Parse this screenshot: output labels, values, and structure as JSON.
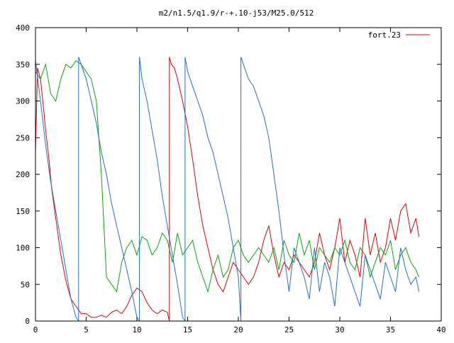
{
  "chart_data": {
    "type": "line",
    "title": "m2/n1.5/q1.9/r-+.10-j53/M25.0/512",
    "xlabel": "",
    "ylabel": "",
    "xlim": [
      0,
      40
    ],
    "ylim": [
      0,
      400
    ],
    "xticks": [
      0,
      5,
      10,
      15,
      20,
      25,
      30,
      35,
      40
    ],
    "yticks": [
      0,
      50,
      100,
      150,
      200,
      250,
      300,
      350,
      400
    ],
    "grid": false,
    "legend": {
      "position": "top-right",
      "entries": [
        "fort.23"
      ]
    },
    "wrap_period": 360,
    "series": [
      {
        "name": "fort.23",
        "color": "#dd0000",
        "x": [
          0.0,
          0.2,
          0.5,
          0.8,
          1.0,
          1.3,
          1.6,
          2.0,
          2.5,
          3.0,
          3.5,
          4.0,
          4.5,
          5.0,
          5.5,
          6.0,
          6.5,
          7.0,
          7.5,
          8.0,
          8.5,
          9.0,
          9.5,
          10.0,
          10.5,
          11.0,
          11.5,
          12.0,
          12.5,
          13.0,
          13.4,
          13.7,
          14.0,
          14.5,
          15.0,
          15.5,
          16.0,
          16.5,
          17.0,
          17.5,
          18.0,
          18.5,
          19.0,
          19.5,
          20.0,
          20.5,
          21.0,
          21.5,
          22.0,
          22.5,
          23.0,
          23.5,
          24.0,
          24.5,
          25.0,
          25.5,
          26.0,
          26.5,
          27.0,
          27.5,
          28.0,
          28.5,
          29.0,
          29.5,
          30.0,
          30.5,
          31.0,
          31.5,
          32.0,
          32.5,
          33.0,
          33.5,
          34.0,
          34.5,
          35.0,
          35.5,
          36.0,
          36.5,
          37.0,
          37.5,
          37.8
        ],
        "y": [
          230,
          345,
          330,
          290,
          260,
          225,
          180,
          140,
          90,
          55,
          30,
          20,
          10,
          10,
          5,
          5,
          8,
          5,
          12,
          15,
          10,
          20,
          35,
          45,
          40,
          25,
          15,
          10,
          15,
          12,
          350,
          345,
          330,
          300,
          265,
          220,
          170,
          130,
          100,
          70,
          50,
          40,
          60,
          80,
          70,
          60,
          50,
          60,
          80,
          110,
          130,
          90,
          60,
          80,
          70,
          90,
          80,
          70,
          60,
          80,
          120,
          90,
          70,
          100,
          140,
          80,
          110,
          90,
          60,
          140,
          90,
          120,
          80,
          100,
          140,
          110,
          150,
          160,
          120,
          140,
          115
        ]
      },
      {
        "name": "",
        "color": "#00aa00",
        "x": [
          0.0,
          0.5,
          1.0,
          1.5,
          2.0,
          2.5,
          3.0,
          3.5,
          4.0,
          4.5,
          5.0,
          5.5,
          6.0,
          6.5,
          7.0,
          7.5,
          8.0,
          8.5,
          9.0,
          9.5,
          10.0,
          10.5,
          11.0,
          11.5,
          12.0,
          12.5,
          13.0,
          13.5,
          14.0,
          14.5,
          15.0,
          15.5,
          16.0,
          16.5,
          17.0,
          17.5,
          18.0,
          18.5,
          19.0,
          19.5,
          20.0,
          20.5,
          21.0,
          21.5,
          22.0,
          22.5,
          23.0,
          23.5,
          24.0,
          24.5,
          25.0,
          25.5,
          26.0,
          26.5,
          27.0,
          27.5,
          28.0,
          28.5,
          29.0,
          29.5,
          30.0,
          30.5,
          31.0,
          31.5,
          32.0,
          32.5,
          33.0,
          33.5,
          34.0,
          34.5,
          35.0,
          35.5,
          36.0,
          36.5,
          37.0,
          37.5,
          37.8
        ],
        "y": [
          340,
          330,
          350,
          310,
          300,
          330,
          350,
          345,
          355,
          350,
          340,
          330,
          300,
          200,
          60,
          50,
          40,
          80,
          100,
          110,
          90,
          115,
          110,
          90,
          100,
          120,
          110,
          80,
          120,
          90,
          100,
          110,
          80,
          60,
          40,
          70,
          90,
          60,
          70,
          100,
          110,
          90,
          80,
          90,
          100,
          90,
          80,
          100,
          70,
          110,
          90,
          80,
          120,
          90,
          110,
          70,
          100,
          90,
          80,
          100,
          90,
          110,
          80,
          70,
          100,
          90,
          60,
          80,
          100,
          90,
          110,
          70,
          90,
          100,
          80,
          70,
          60
        ]
      },
      {
        "name": "",
        "color": "#1f6fd6",
        "x": [
          0.0,
          0.5,
          1.0,
          1.5,
          2.0,
          2.5,
          3.0,
          3.5,
          4.0,
          4.5,
          5.0,
          5.5,
          6.0,
          6.5,
          7.0,
          7.5,
          8.0,
          8.5,
          9.0,
          9.5,
          10.0,
          10.5,
          11.0,
          11.5,
          12.0,
          12.5,
          13.0,
          13.5,
          14.0,
          14.5,
          15.0,
          15.5,
          16.0,
          16.5,
          17.0,
          17.5,
          18.0,
          18.5,
          19.0,
          19.5,
          20.0,
          20.5,
          21.0,
          21.5,
          22.0,
          22.5,
          23.0,
          23.5,
          24.0,
          24.5,
          25.0,
          25.5,
          26.0,
          26.5,
          27.0,
          27.5,
          28.0,
          28.5,
          29.0,
          29.5,
          30.0,
          30.5,
          31.0,
          31.5,
          32.0,
          32.5,
          33.0,
          33.5,
          34.0,
          34.5,
          35.0,
          35.5,
          36.0,
          36.5,
          37.0,
          37.5,
          37.8
        ],
        "y": [
          355,
          300,
          240,
          190,
          150,
          110,
          70,
          30,
          5,
          350,
          330,
          300,
          270,
          230,
          200,
          160,
          130,
          100,
          70,
          40,
          5,
          330,
          300,
          260,
          220,
          170,
          130,
          90,
          50,
          5,
          340,
          320,
          300,
          280,
          250,
          230,
          200,
          170,
          140,
          100,
          60,
          350,
          330,
          320,
          300,
          280,
          250,
          200,
          150,
          90,
          40,
          100,
          80,
          60,
          30,
          100,
          40,
          80,
          60,
          20,
          100,
          80,
          60,
          40,
          20,
          90,
          70,
          50,
          30,
          80,
          60,
          40,
          100,
          70,
          50,
          60,
          40
        ]
      }
    ]
  }
}
